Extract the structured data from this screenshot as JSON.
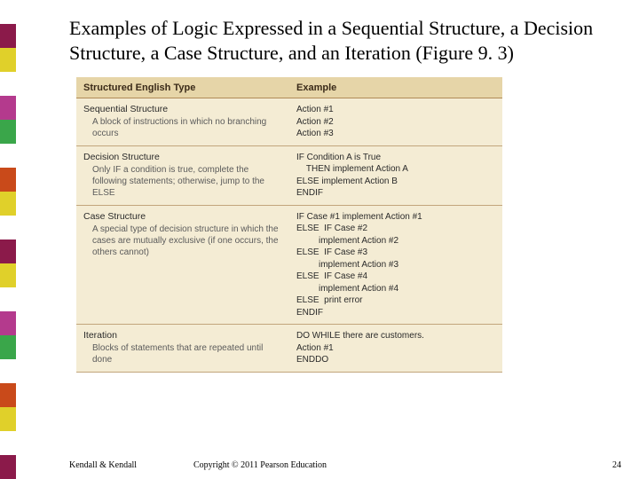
{
  "sidebar_colors": [
    "#ffffff",
    "#8b1a4a",
    "#e0d02a",
    "#ffffff",
    "#b43a8d",
    "#3aa64a",
    "#ffffff",
    "#c94a1a",
    "#e0d02a",
    "#ffffff",
    "#8b1a4a",
    "#e0d02a",
    "#ffffff",
    "#b43a8d",
    "#3aa64a",
    "#ffffff",
    "#c94a1a",
    "#e0d02a",
    "#ffffff",
    "#8b1a4a"
  ],
  "title": "Examples of Logic Expressed in a Sequential Structure, a Decision Structure, a Case Structure, and an Iteration (Figure 9. 3)",
  "figure": {
    "header_bg": "#e6d5a8",
    "row_bg": "#f4ecd4",
    "border_color": "#c2a57c",
    "headers": {
      "left": "Structured English Type",
      "right": "Example"
    },
    "sections": [
      {
        "title": "Sequential Structure",
        "desc": "A block of instructions in which no branching occurs",
        "example": [
          "Action #1",
          "Action #2",
          "Action #3"
        ]
      },
      {
        "title": "Decision Structure",
        "desc": "Only IF a condition is true, complete the following statements; otherwise, jump to the ELSE",
        "example": [
          "IF Condition A is True",
          "    THEN implement Action A",
          "ELSE implement Action B",
          "ENDIF"
        ]
      },
      {
        "title": "Case Structure",
        "desc": "A special type of decision structure in which the cases are mutually exclusive (if one occurs, the others cannot)",
        "example": [
          "IF Case #1 implement Action #1",
          "ELSE  IF Case #2",
          "         implement Action #2",
          "ELSE  IF Case #3",
          "         implement Action #3",
          "ELSE  IF Case #4",
          "         implement Action #4",
          "ELSE  print error",
          "ENDIF"
        ]
      },
      {
        "title": "Iteration",
        "desc": "Blocks of statements that are repeated until done",
        "example": [
          "DO WHILE there are customers.",
          "Action #1",
          "ENDDO"
        ]
      }
    ]
  },
  "footer": {
    "author": "Kendall & Kendall",
    "copyright": "Copyright © 2011 Pearson Education",
    "page": "24"
  }
}
